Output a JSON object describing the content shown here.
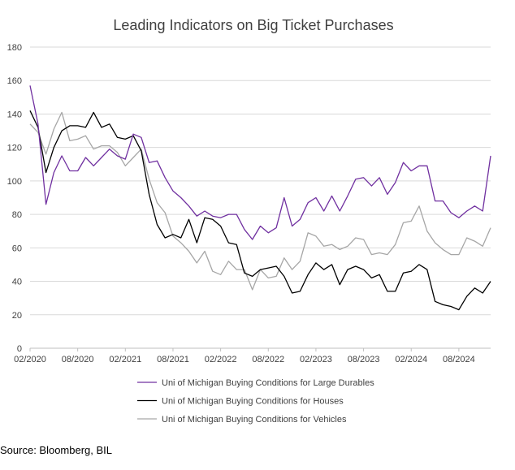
{
  "chart_data": {
    "type": "line",
    "title": "Leading Indicators on Big Ticket Purchases",
    "ylim": [
      0,
      180
    ],
    "yticks": [
      0,
      20,
      40,
      60,
      80,
      100,
      120,
      140,
      160,
      180
    ],
    "x_start": "2020-02",
    "x_end": "2024-12",
    "xtick_labels": [
      "02/2020",
      "08/2020",
      "02/2021",
      "08/2021",
      "02/2022",
      "08/2022",
      "02/2023",
      "08/2023",
      "02/2024",
      "08/2024"
    ],
    "grid": "horizontal",
    "legend_position": "bottom",
    "series": [
      {
        "name": "Uni of Michigan Buying Conditions for Large Durables",
        "color": "#7030a0",
        "values": [
          157,
          134,
          86,
          105,
          115,
          106,
          106,
          114,
          109,
          114,
          119,
          115,
          113,
          128,
          126,
          111,
          112,
          102,
          94,
          90,
          85,
          79,
          82,
          79,
          78,
          80,
          80,
          71,
          65,
          73,
          69,
          72,
          90,
          73,
          77,
          87,
          90,
          82,
          91,
          82,
          91,
          101,
          102,
          97,
          102,
          92,
          99,
          111,
          106,
          109,
          109,
          88,
          88,
          81,
          78,
          82,
          85,
          82,
          115
        ]
      },
      {
        "name": "Uni of Michigan Buying Conditions for Houses",
        "color": "#000000",
        "values": [
          142,
          132,
          105,
          120,
          130,
          133,
          133,
          132,
          141,
          132,
          134,
          126,
          125,
          127,
          118,
          92,
          74,
          66,
          68,
          66,
          77,
          63,
          78,
          77,
          73,
          63,
          62,
          45,
          43,
          47,
          48,
          49,
          43,
          33,
          34,
          44,
          51,
          47,
          50,
          38,
          47,
          49,
          47,
          42,
          44,
          34,
          34,
          45,
          46,
          50,
          47,
          28,
          26,
          25,
          23,
          31,
          36,
          33,
          40
        ]
      },
      {
        "name": "Uni of Michigan Buying Conditions for Vehicles",
        "color": "#a6a6a6",
        "values": [
          134,
          129,
          116,
          131,
          141,
          124,
          125,
          127,
          119,
          121,
          121,
          117,
          109,
          114,
          119,
          101,
          87,
          81,
          67,
          63,
          58,
          51,
          58,
          46,
          44,
          52,
          47,
          47,
          35,
          47,
          42,
          43,
          54,
          47,
          52,
          69,
          67,
          61,
          62,
          59,
          61,
          66,
          65,
          56,
          57,
          56,
          62,
          75,
          76,
          85,
          70,
          63,
          59,
          56,
          56,
          66,
          64,
          61,
          72
        ]
      }
    ]
  },
  "source": "Source: Bloomberg, BIL"
}
